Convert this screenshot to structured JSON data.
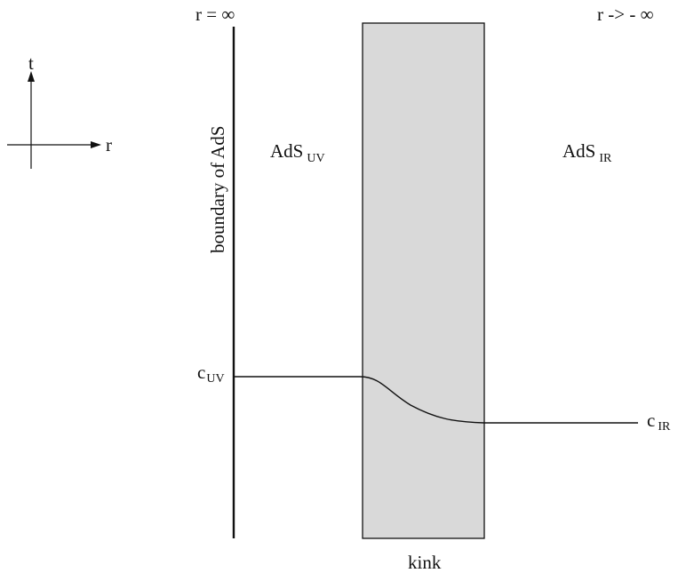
{
  "axes": {
    "t_label": "t",
    "r_label": "r"
  },
  "labels": {
    "r_infinity": "r = ∞",
    "r_neg_infinity": "r -> - ∞",
    "boundary": "boundary of AdS",
    "kink": "kink"
  },
  "regions": {
    "uv": {
      "main": "AdS",
      "sub": "UV"
    },
    "ir": {
      "main": "AdS",
      "sub": "IR"
    }
  },
  "constants": {
    "c_uv": {
      "main": "c",
      "sub": "UV"
    },
    "c_ir": {
      "main": "c",
      "sub": "IR"
    }
  },
  "colors": {
    "kink_fill": "#d9d9d9",
    "ink": "#111111"
  }
}
